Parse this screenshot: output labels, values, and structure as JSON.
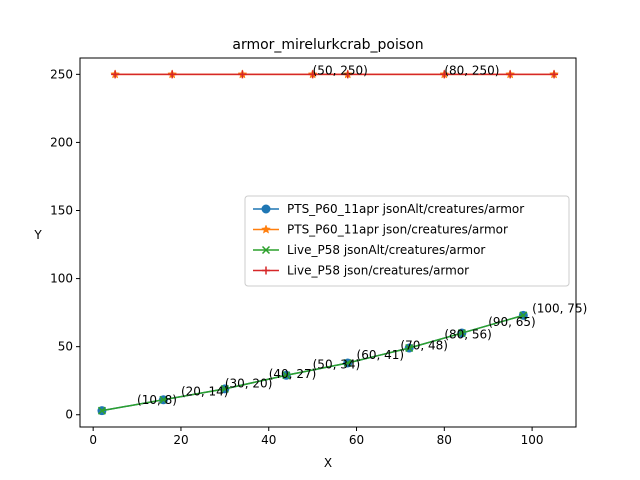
{
  "chart_data": {
    "type": "line",
    "title": "armor_mirelurkcrab_poison",
    "xlabel": "X",
    "ylabel": "Y",
    "xlim": [
      -3,
      110
    ],
    "ylim": [
      -9,
      262
    ],
    "xticks": [
      0,
      20,
      40,
      60,
      80,
      100
    ],
    "yticks": [
      0,
      50,
      100,
      150,
      200,
      250
    ],
    "grid": false,
    "legend_position": "center-right",
    "series": [
      {
        "name": "PTS_P60_11apr jsonAlt/creatures/armor",
        "color": "#1f77b4",
        "marker": "circle",
        "x": [
          2,
          16,
          30,
          44,
          58,
          72,
          84,
          98
        ],
        "y": [
          3,
          11,
          19,
          29,
          38,
          49,
          60,
          73
        ]
      },
      {
        "name": "PTS_P60_11apr json/creatures/armor",
        "color": "#ff7f0e",
        "marker": "star",
        "x": [
          5,
          18,
          34,
          50,
          58,
          80,
          95,
          105
        ],
        "y": [
          250,
          250,
          250,
          250,
          250,
          250,
          250,
          250
        ]
      },
      {
        "name": "Live_P58 jsonAlt/creatures/armor",
        "color": "#2ca02c",
        "marker": "x",
        "x": [
          2,
          16,
          30,
          44,
          58,
          72,
          84,
          98
        ],
        "y": [
          3,
          11,
          19,
          29,
          38,
          49,
          60,
          73
        ]
      },
      {
        "name": "Live_P58 json/creatures/armor",
        "color": "#d62728",
        "marker": "plus",
        "x": [
          5,
          18,
          34,
          50,
          58,
          80,
          95,
          105
        ],
        "y": [
          250,
          250,
          250,
          250,
          250,
          250,
          250,
          250
        ]
      }
    ],
    "annotations": [
      {
        "text": "(10, 8)",
        "x": 10,
        "y": 8
      },
      {
        "text": "(20, 14)",
        "x": 20,
        "y": 14
      },
      {
        "text": "(30, 20)",
        "x": 30,
        "y": 20
      },
      {
        "text": "(40, 27)",
        "x": 40,
        "y": 27
      },
      {
        "text": "(50, 34)",
        "x": 50,
        "y": 34
      },
      {
        "text": "(60, 41)",
        "x": 60,
        "y": 41
      },
      {
        "text": "(70, 48)",
        "x": 70,
        "y": 48
      },
      {
        "text": "(80, 56)",
        "x": 80,
        "y": 56
      },
      {
        "text": "(90, 65)",
        "x": 90,
        "y": 65
      },
      {
        "text": "(100, 75)",
        "x": 100,
        "y": 75
      },
      {
        "text": "(50, 250)",
        "x": 50,
        "y": 250
      },
      {
        "text": "(80, 250)",
        "x": 80,
        "y": 250
      }
    ]
  }
}
